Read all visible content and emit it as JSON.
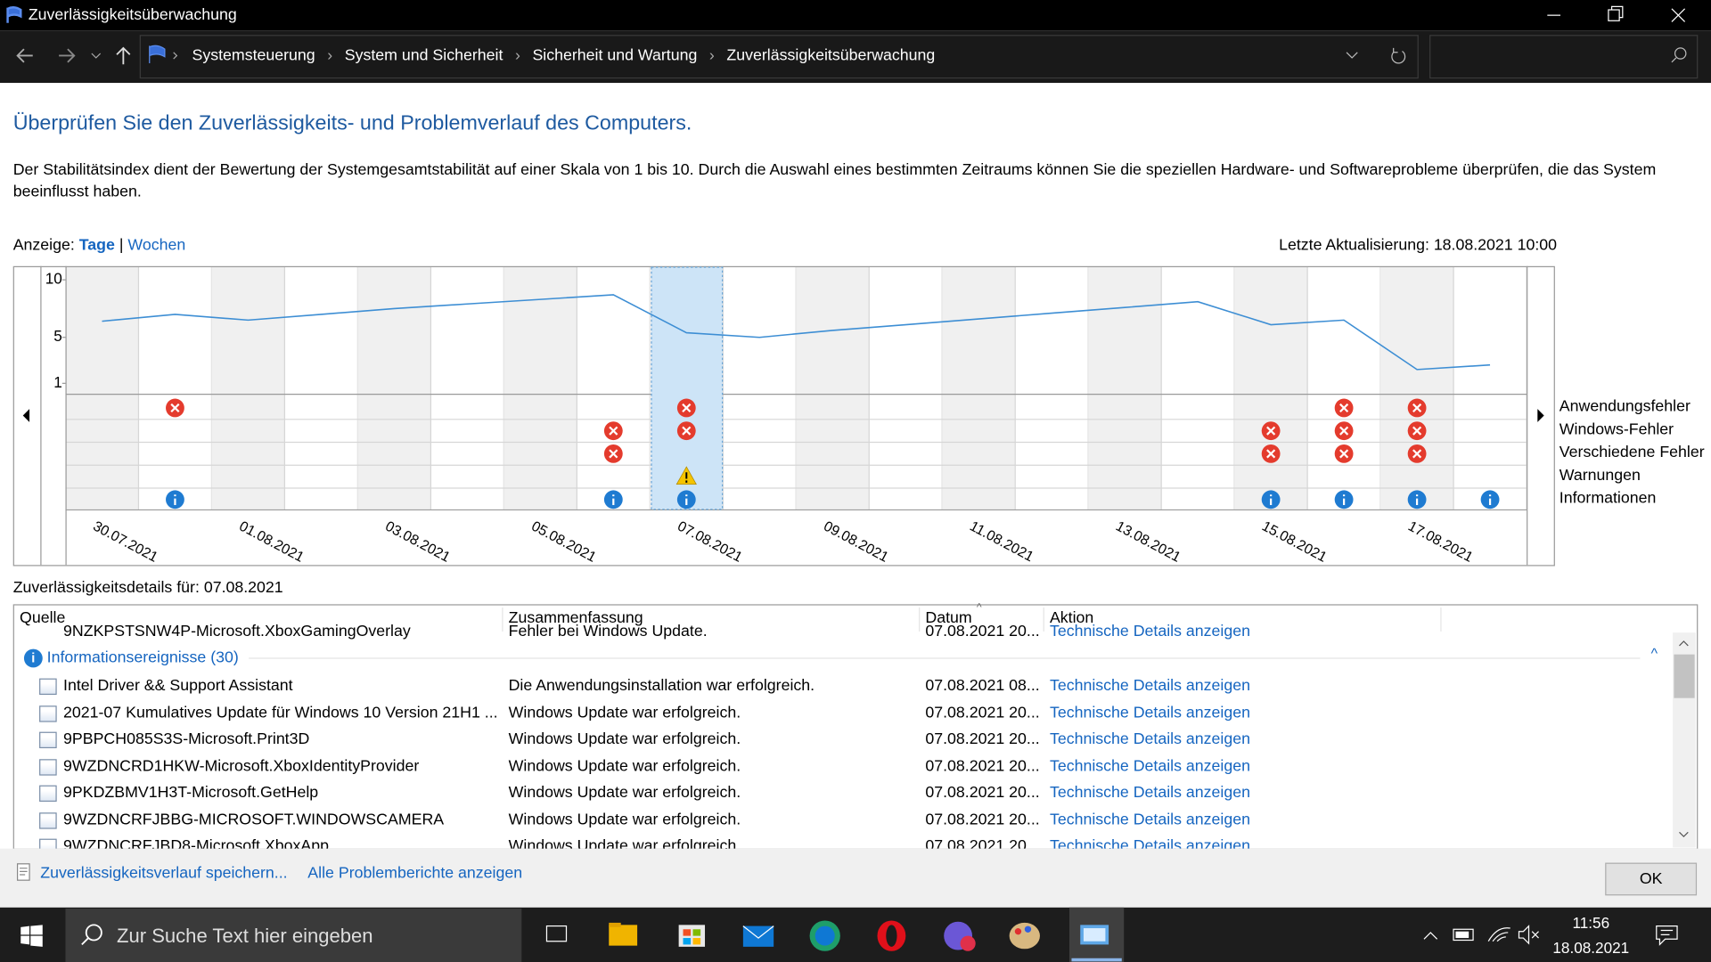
{
  "window": {
    "title": "Zuverlässigkeitsüberwachung"
  },
  "breadcrumb": [
    "Systemsteuerung",
    "System und Sicherheit",
    "Sicherheit und Wartung",
    "Zuverlässigkeitsüberwachung"
  ],
  "heading": "Überprüfen Sie den Zuverlässigkeits- und Problemverlauf des Computers.",
  "description": "Der Stabilitätsindex dient der Bewertung der Systemgesamtstabilität auf einer Skala von 1 bis 10. Durch die Auswahl eines bestimmten Zeitraums können Sie die speziellen Hardware- und Softwareprobleme überprüfen, die das System beeinflusst haben.",
  "view": {
    "label": "Anzeige:",
    "days": "Tage",
    "separator": "|",
    "weeks": "Wochen"
  },
  "last_update": "Letzte Aktualisierung: 18.08.2021 10:00",
  "chart_data": {
    "type": "line",
    "categories": [
      "30.07.2021",
      null,
      "01.08.2021",
      null,
      "03.08.2021",
      null,
      "05.08.2021",
      null,
      "07.08.2021",
      null,
      "09.08.2021",
      null,
      "11.08.2021",
      null,
      "13.08.2021",
      null,
      "15.08.2021",
      null,
      "17.08.2021",
      null
    ],
    "values": [
      6.4,
      7.0,
      6.5,
      7.0,
      7.5,
      7.9,
      8.3,
      8.7,
      5.4,
      5.0,
      5.6,
      6.1,
      6.6,
      7.1,
      7.6,
      8.1,
      6.1,
      6.5,
      2.2,
      2.6
    ],
    "color": "#3d8ed4",
    "ylim": [
      0,
      11
    ],
    "yticks": [
      1,
      5,
      10
    ],
    "grid": false,
    "event_rows": [
      {
        "name": "Anwendungsfehler",
        "kind": "error",
        "values": [
          0,
          1,
          0,
          0,
          0,
          0,
          0,
          0,
          1,
          0,
          0,
          0,
          0,
          0,
          0,
          0,
          0,
          1,
          1,
          0
        ]
      },
      {
        "name": "Windows-Fehler",
        "kind": "error",
        "values": [
          0,
          0,
          0,
          0,
          0,
          0,
          0,
          1,
          1,
          0,
          0,
          0,
          0,
          0,
          0,
          0,
          1,
          1,
          1,
          0
        ]
      },
      {
        "name": "Verschiedene Fehler",
        "kind": "error",
        "values": [
          0,
          0,
          0,
          0,
          0,
          0,
          0,
          1,
          0,
          0,
          0,
          0,
          0,
          0,
          0,
          0,
          1,
          1,
          1,
          0
        ]
      },
      {
        "name": "Warnungen",
        "kind": "warning",
        "values": [
          0,
          0,
          0,
          0,
          0,
          0,
          0,
          0,
          1,
          0,
          0,
          0,
          0,
          0,
          0,
          0,
          0,
          0,
          0,
          0
        ]
      },
      {
        "name": "Informationen",
        "kind": "info",
        "values": [
          0,
          1,
          0,
          0,
          0,
          0,
          0,
          1,
          1,
          0,
          0,
          0,
          0,
          0,
          0,
          0,
          1,
          1,
          1,
          1
        ]
      }
    ]
  },
  "details": {
    "label": "Zuverlässigkeitsdetails für: 07.08.2021",
    "columns": [
      "Quelle",
      "Zusammenfassung",
      "Datum",
      "Aktion"
    ],
    "rows_before": [
      [
        "9NZKPSTSNW4P-Microsoft.XboxGamingOverlay",
        "Fehler bei Windows Update.",
        "07.08.2021 20...",
        "Technische Details anzeigen"
      ]
    ],
    "group": "Informationsereignisse (30)",
    "rows": [
      [
        "Intel Driver && Support Assistant",
        "Die Anwendungsinstallation war erfolgreich.",
        "07.08.2021 08...",
        "Technische Details anzeigen"
      ],
      [
        "2021-07 Kumulatives Update für Windows 10 Version 21H1 ...",
        "Windows Update war erfolgreich.",
        "07.08.2021 20...",
        "Technische Details anzeigen"
      ],
      [
        "9PBPCH085S3S-Microsoft.Print3D",
        "Windows Update war erfolgreich.",
        "07.08.2021 20...",
        "Technische Details anzeigen"
      ],
      [
        "9WZDNCRD1HKW-Microsoft.XboxIdentityProvider",
        "Windows Update war erfolgreich.",
        "07.08.2021 20...",
        "Technische Details anzeigen"
      ],
      [
        "9PKDZBMV1H3T-Microsoft.GetHelp",
        "Windows Update war erfolgreich.",
        "07.08.2021 20...",
        "Technische Details anzeigen"
      ],
      [
        "9WZDNCRFJBBG-MICROSOFT.WINDOWSCAMERA",
        "Windows Update war erfolgreich.",
        "07.08.2021 20...",
        "Technische Details anzeigen"
      ],
      [
        "9WZDNCRFJBD8-Microsoft.XboxApp",
        "Windows Update war erfolgreich.",
        "07.08.2021 20...",
        "Technische Details anzeigen"
      ]
    ]
  },
  "footer": {
    "save": "Zuverlässigkeitsverlauf speichern...",
    "reports": "Alle Problemberichte anzeigen",
    "ok": "OK"
  },
  "taskbar": {
    "search": "Zur Suche Text hier eingeben",
    "time": "11:56",
    "date": "18.08.2021"
  }
}
